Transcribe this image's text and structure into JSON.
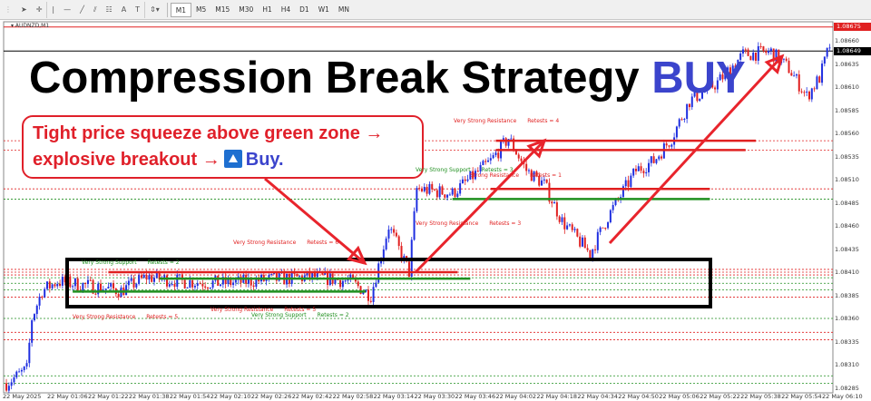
{
  "toolbar": {
    "tools": [
      {
        "name": "cursor-icon",
        "glyph": "➤"
      },
      {
        "name": "crosshair-icon",
        "glyph": "✛"
      },
      {
        "name": "vertical-line-icon",
        "glyph": "|"
      },
      {
        "name": "horizontal-line-icon",
        "glyph": "—"
      },
      {
        "name": "trendline-icon",
        "glyph": "╱"
      },
      {
        "name": "channels-icon",
        "glyph": "⫽"
      },
      {
        "name": "fibonacci-icon",
        "glyph": "☷"
      },
      {
        "name": "text-icon",
        "glyph": "A"
      },
      {
        "name": "text-label-icon",
        "glyph": "T"
      },
      {
        "name": "shapes-dropdown-icon",
        "glyph": "⇕▾"
      }
    ],
    "timeframes": [
      "M1",
      "M5",
      "M15",
      "M30",
      "H1",
      "H4",
      "D1",
      "W1",
      "MN"
    ],
    "active_timeframe": "M1"
  },
  "chart": {
    "symbol": "AUDNZD,M1",
    "title_main": "Compression Break Strategy ",
    "title_accent": "BUY",
    "callout_line1": "Tight price squeeze above green zone →",
    "callout_line2a": "explosive breakout →",
    "callout_line2b": "Buy.",
    "colors": {
      "bull": "#1f2fe0",
      "bear": "#e02020",
      "resistance": "#e02020",
      "support": "#1f8f1f",
      "accent": "#3b44cc"
    },
    "ask_price": "1.08675",
    "bid_price": "1.08649",
    "price_ticks": [
      "1.08660",
      "1.08635",
      "1.08610",
      "1.08585",
      "1.08560",
      "1.08535",
      "1.08510",
      "1.08485",
      "1.08460",
      "1.08435",
      "1.08410",
      "1.08385",
      "1.08360",
      "1.08335",
      "1.08310",
      "1.08285"
    ],
    "time_ticks": [
      "22 May 2025",
      "22 May 01:06",
      "22 May 01:22",
      "22 May 01:38",
      "22 May 01:54",
      "22 May 02:10",
      "22 May 02:26",
      "22 May 02:42",
      "22 May 02:58",
      "22 May 03:14",
      "22 May 03:30",
      "22 May 03:46",
      "22 May 04:02",
      "22 May 04:18",
      "22 May 04:34",
      "22 May 04:50",
      "22 May 05:06",
      "22 May 05:22",
      "22 May 05:38",
      "22 May 05:54",
      "22 May 06:10"
    ],
    "level_labels": [
      {
        "type": "Very Strong Resistance",
        "retests": "Retests = 4",
        "kind": "red"
      },
      {
        "type": "Very Strong Support",
        "retests": "Retests = 3",
        "kind": "green"
      },
      {
        "type": "Strong Resistance",
        "retests": "Retests = 1",
        "kind": "red"
      },
      {
        "type": "Very Strong Resistance",
        "retests": "Retests = 3",
        "kind": "red"
      },
      {
        "type": "Very Strong Resistance",
        "retests": "Retests = 6",
        "kind": "red"
      },
      {
        "type": "Very Strong Support",
        "retests": "Retests = 2",
        "kind": "green"
      },
      {
        "type": "Very Strong Resistance",
        "retests": "Retests = 5",
        "kind": "red"
      },
      {
        "type": "Very Strong Resistance",
        "retests": "Retests = 5",
        "kind": "red"
      },
      {
        "type": "Very Strong Support",
        "retests": "Retests = 2",
        "kind": "green"
      }
    ],
    "price_path": [
      [
        "00:50",
        1.0829
      ],
      [
        "00:58",
        1.08305
      ],
      [
        "01:00",
        1.0836
      ],
      [
        "01:04",
        1.0839
      ],
      [
        "01:10",
        1.084
      ],
      [
        "01:23",
        1.08395
      ],
      [
        "01:35",
        1.0839
      ],
      [
        "01:45",
        1.08405
      ],
      [
        "01:59",
        1.084
      ],
      [
        "02:15",
        1.08398
      ],
      [
        "02:34",
        1.08402
      ],
      [
        "02:50",
        1.08405
      ],
      [
        "03:05",
        1.084
      ],
      [
        "03:13",
        1.08385
      ],
      [
        "03:20",
        1.0846
      ],
      [
        "03:28",
        1.0841
      ],
      [
        "03:31",
        1.085
      ],
      [
        "03:45",
        1.08495
      ],
      [
        "04:00",
        1.0853
      ],
      [
        "04:07",
        1.08555
      ],
      [
        "04:14",
        1.0852
      ],
      [
        "04:21",
        1.08505
      ],
      [
        "04:28",
        1.08465
      ],
      [
        "04:39",
        1.0843
      ],
      [
        "04:46",
        1.0847
      ],
      [
        "04:57",
        1.0852
      ],
      [
        "05:04",
        1.0853
      ],
      [
        "05:11",
        1.08555
      ],
      [
        "05:18",
        1.08595
      ],
      [
        "05:29",
        1.08615
      ],
      [
        "05:39",
        1.08645
      ],
      [
        "05:50",
        1.08648
      ],
      [
        "05:57",
        1.0863
      ],
      [
        "06:04",
        1.086
      ],
      [
        "06:09",
        1.0862
      ],
      [
        "06:13",
        1.08655
      ]
    ],
    "solid_levels": [
      {
        "price": 1.08552,
        "from": "04:02",
        "to": "05:44",
        "kind": "red"
      },
      {
        "price": 1.08542,
        "from": "04:02",
        "to": "05:40",
        "kind": "red"
      },
      {
        "price": 1.085,
        "from": "04:00",
        "to": "05:26",
        "kind": "red"
      },
      {
        "price": 1.08489,
        "from": "03:45",
        "to": "05:26",
        "kind": "green"
      },
      {
        "price": 1.0841,
        "from": "01:30",
        "to": "03:47",
        "kind": "red"
      },
      {
        "price": 1.08403,
        "from": "01:50",
        "to": "03:52",
        "kind": "green"
      },
      {
        "price": 1.08389,
        "from": "01:16",
        "to": "03:11",
        "kind": "green"
      }
    ],
    "dashed_levels": [
      {
        "price": 1.08552,
        "kind": "red"
      },
      {
        "price": 1.08542,
        "kind": "red"
      },
      {
        "price": 1.085,
        "kind": "red"
      },
      {
        "price": 1.08489,
        "kind": "green"
      },
      {
        "price": 1.08413,
        "kind": "red"
      },
      {
        "price": 1.0841,
        "kind": "red"
      },
      {
        "price": 1.08407,
        "kind": "red"
      },
      {
        "price": 1.08404,
        "kind": "green"
      },
      {
        "price": 1.08398,
        "kind": "green"
      },
      {
        "price": 1.08391,
        "kind": "green"
      },
      {
        "price": 1.08383,
        "kind": "red"
      },
      {
        "price": 1.0836,
        "kind": "green"
      },
      {
        "price": 1.08345,
        "kind": "red"
      },
      {
        "price": 1.08337,
        "kind": "red"
      },
      {
        "price": 1.08298,
        "kind": "green"
      },
      {
        "price": 1.0829,
        "kind": "green"
      }
    ]
  }
}
